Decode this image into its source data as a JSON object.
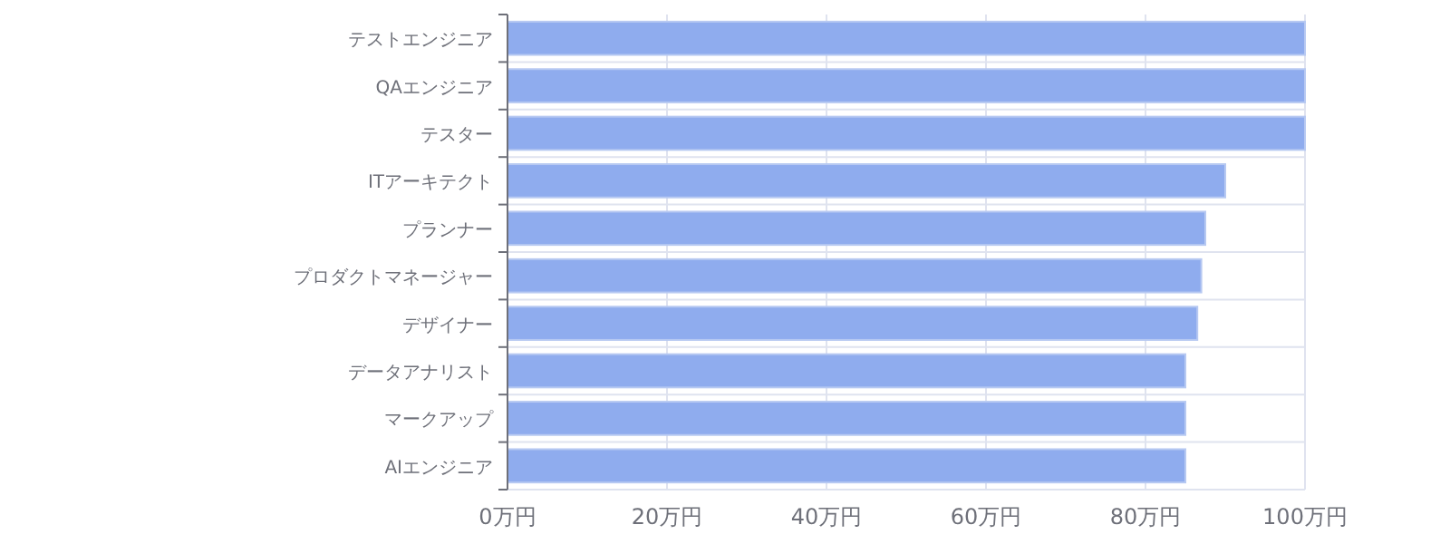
{
  "chart_data": {
    "type": "bar",
    "orientation": "horizontal",
    "categories": [
      "テストエンジニア",
      "QAエンジニア",
      "テスター",
      "ITアーキテクト",
      "プランナー",
      "プロダクトマネージャー",
      "デザイナー",
      "データアナリスト",
      "マークアップ",
      "AIエンジニア"
    ],
    "values": [
      100,
      100,
      100,
      90,
      87.5,
      87,
      86.5,
      85,
      85,
      85
    ],
    "color": "#8facee",
    "grid": true,
    "xlim": [
      0,
      100
    ],
    "xticks": [
      {
        "value": 0,
        "label": "0万円"
      },
      {
        "value": 20,
        "label": "20万円"
      },
      {
        "value": 40,
        "label": "40万円"
      },
      {
        "value": 60,
        "label": "60万円"
      },
      {
        "value": 80,
        "label": "80万円"
      },
      {
        "value": 100,
        "label": "100万円"
      }
    ]
  }
}
